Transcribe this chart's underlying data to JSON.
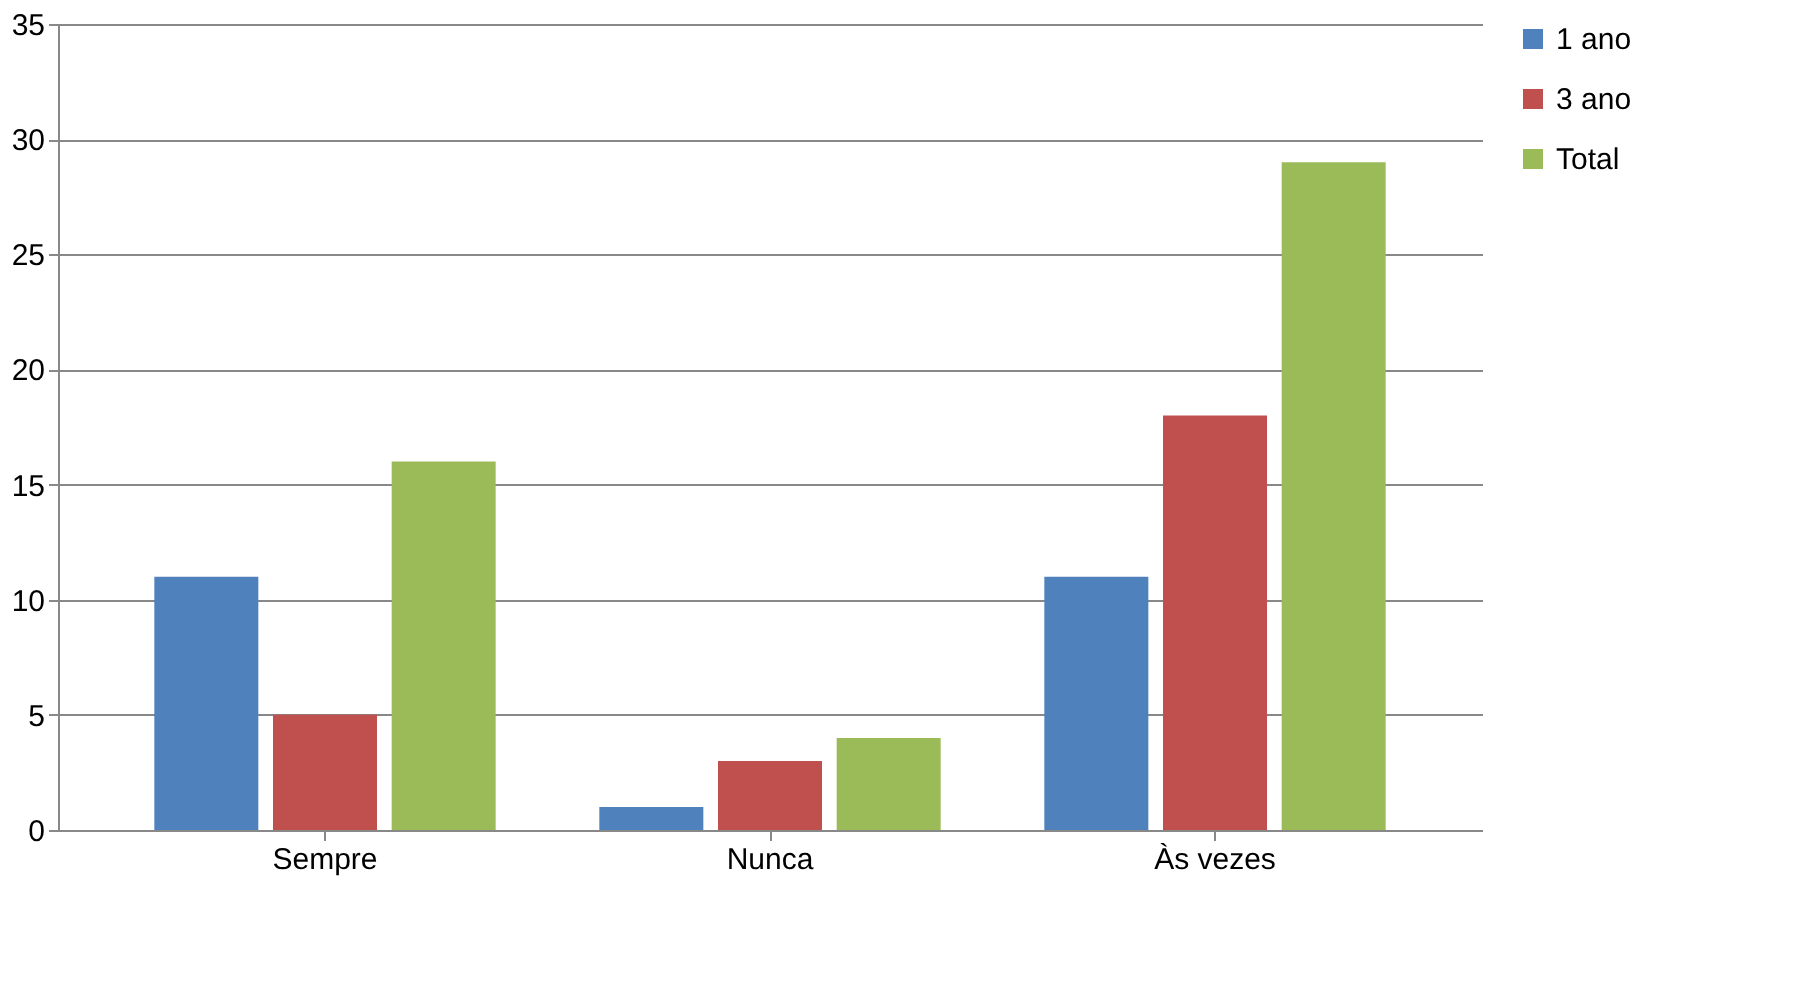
{
  "chart_data": {
    "type": "bar",
    "categories": [
      "Sempre",
      "Nunca",
      "Às vezes"
    ],
    "series": [
      {
        "name": "1 ano",
        "color": "#4f81bd",
        "values": [
          11,
          1,
          11
        ]
      },
      {
        "name": "3 ano",
        "color": "#c0504d",
        "values": [
          5,
          3,
          18
        ]
      },
      {
        "name": "Total",
        "color": "#9bbb59",
        "values": [
          16,
          4,
          29
        ]
      }
    ],
    "ylim": [
      0,
      35
    ],
    "yticks": [
      0,
      5,
      10,
      15,
      20,
      25,
      30,
      35
    ],
    "grid": "y",
    "legend": "right"
  }
}
